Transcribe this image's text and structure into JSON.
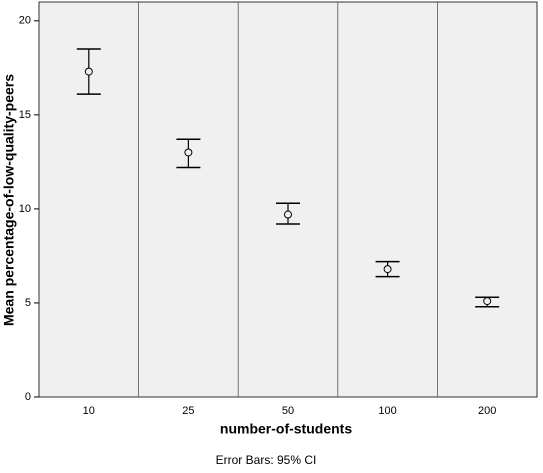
{
  "chart_data": {
    "type": "errorbar",
    "x_label": "number-of-students",
    "y_label": "Mean percentage-of-low-quality-peers",
    "footnote": "Error Bars: 95% CI",
    "categories": [
      "10",
      "25",
      "50",
      "100",
      "200"
    ],
    "values": [
      17.3,
      13.0,
      9.7,
      6.8,
      5.1
    ],
    "ci_low": [
      16.1,
      12.2,
      9.2,
      6.4,
      4.8
    ],
    "ci_high": [
      18.5,
      13.7,
      10.3,
      7.2,
      5.3
    ],
    "ylim": [
      0,
      21
    ],
    "yticks": [
      0,
      5,
      10,
      15,
      20
    ]
  }
}
